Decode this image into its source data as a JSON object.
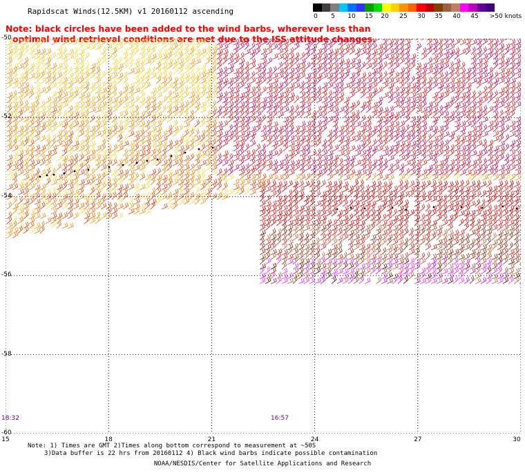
{
  "title": "Rapidscat Winds(12.5KM) v1 20160112 ascending",
  "note": {
    "line1": "Note: black circles have been added to the wind barbs, wherever less than",
    "line2": "optimal wind retrieval conditions are met due to the ISS attitude changes."
  },
  "colorbar": {
    "unit": "knots",
    "labels": [
      "0",
      "5",
      "10",
      "15",
      "20",
      "25",
      "30",
      "35",
      "40",
      "45",
      ">50 knots"
    ],
    "colors": [
      "#000000",
      "#404040",
      "#808080",
      "#00c8ff",
      "#0070ff",
      "#3030ff",
      "#00a000",
      "#00e000",
      "#ffff00",
      "#ffd000",
      "#ff9000",
      "#ff6000",
      "#ff0000",
      "#c00000",
      "#804000",
      "#a06040",
      "#c08060",
      "#ff00ff",
      "#c000c0",
      "#6000a0",
      "#400080"
    ]
  },
  "map": {
    "lat_labels": [
      "-50",
      "-52",
      "-54",
      "-56",
      "-58",
      "-60"
    ],
    "lon_labels": [
      "15",
      "18",
      "21",
      "24",
      "27",
      "30"
    ],
    "pass_times": [
      "18:32",
      "16:57"
    ]
  },
  "wind_field": [
    {
      "swath": "west",
      "lat_range": [
        -50,
        -55.2
      ],
      "lon_range": [
        15,
        30
      ],
      "speed_knots": [
        20,
        30
      ],
      "color": "#e8c040"
    },
    {
      "swath": "east",
      "lat_range": [
        -54.1,
        -56.6
      ],
      "lon_range": [
        22.5,
        30
      ],
      "speed_knots": [
        30,
        50
      ],
      "color": "#d01818"
    }
  ],
  "footnotes": {
    "line1": "Note: 1) Times are GMT 2)Times along bottom correspond to measurement at ~50S",
    "line2": "3)Data buffer is 22 hrs from 20160112 4) Black wind barbs indicate possible contamination"
  },
  "credit": "NOAA/NESDIS/Center for Satellite Applications and Research"
}
